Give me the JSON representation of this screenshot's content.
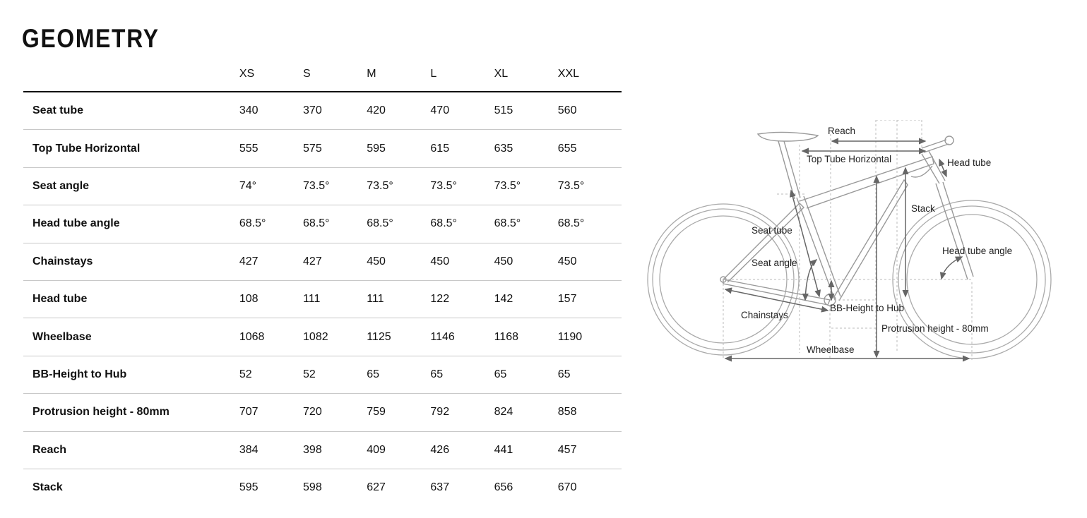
{
  "title": "GEOMETRY",
  "sizes": [
    "XS",
    "S",
    "M",
    "L",
    "XL",
    "XXL"
  ],
  "rows": [
    {
      "label": "Seat tube",
      "values": [
        "340",
        "370",
        "420",
        "470",
        "515",
        "560"
      ]
    },
    {
      "label": "Top Tube Horizontal",
      "values": [
        "555",
        "575",
        "595",
        "615",
        "635",
        "655"
      ]
    },
    {
      "label": "Seat angle",
      "values": [
        "74°",
        "73.5°",
        "73.5°",
        "73.5°",
        "73.5°",
        "73.5°"
      ]
    },
    {
      "label": "Head tube angle",
      "values": [
        "68.5°",
        "68.5°",
        "68.5°",
        "68.5°",
        "68.5°",
        "68.5°"
      ]
    },
    {
      "label": "Chainstays",
      "values": [
        "427",
        "427",
        "450",
        "450",
        "450",
        "450"
      ]
    },
    {
      "label": "Head tube",
      "values": [
        "108",
        "111",
        "111",
        "122",
        "142",
        "157"
      ]
    },
    {
      "label": "Wheelbase",
      "values": [
        "1068",
        "1082",
        "1125",
        "1146",
        "1168",
        "1190"
      ]
    },
    {
      "label": "BB-Height to Hub",
      "values": [
        "52",
        "52",
        "65",
        "65",
        "65",
        "65"
      ]
    },
    {
      "label": "Protrusion height - 80mm",
      "values": [
        "707",
        "720",
        "759",
        "792",
        "824",
        "858"
      ]
    },
    {
      "label": "Reach",
      "values": [
        "384",
        "398",
        "409",
        "426",
        "441",
        "457"
      ]
    },
    {
      "label": "Stack",
      "values": [
        "595",
        "598",
        "627",
        "637",
        "656",
        "670"
      ]
    }
  ],
  "diagram": {
    "reach": "Reach",
    "top_tube": "Top Tube Horizontal",
    "head_tube": "Head tube",
    "stack": "Stack",
    "seat_tube": "Seat tube",
    "head_tube_angle": "Head tube angle",
    "seat_angle": "Seat angle",
    "bb_height": "BB-Height to Hub",
    "chainstays": "Chainstays",
    "protrusion": "Protrusion height - 80mm",
    "wheelbase": "Wheelbase"
  }
}
